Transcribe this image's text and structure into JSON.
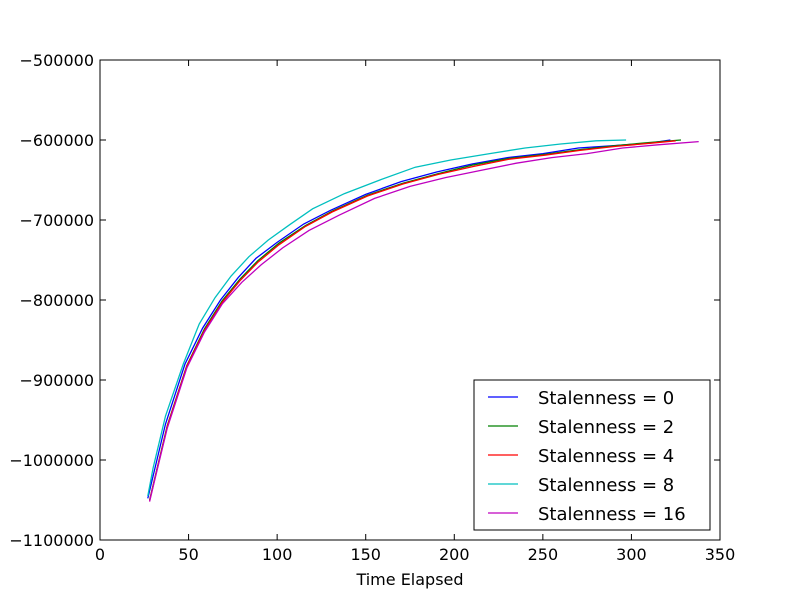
{
  "chart_data": {
    "type": "line",
    "title": "",
    "xlabel": "Time Elapsed",
    "ylabel": "",
    "xlim": [
      0,
      350
    ],
    "ylim": [
      -1100000,
      -500000
    ],
    "xticks": [
      0,
      50,
      100,
      150,
      200,
      250,
      300,
      350
    ],
    "yticks": [
      -1100000,
      -1000000,
      -900000,
      -800000,
      -700000,
      -600000,
      -500000
    ],
    "xtick_labels": [
      "0",
      "50",
      "100",
      "150",
      "200",
      "250",
      "300",
      "350"
    ],
    "ytick_labels": [
      "−1100000",
      "−1000000",
      "−900000",
      "−800000",
      "−700000",
      "−600000",
      "−500000"
    ],
    "grid": false,
    "legend_position": "lower-right",
    "series": [
      {
        "name": "Stalenness = 0",
        "color": "#0000ff",
        "x": [
          27,
          30,
          37,
          48,
          58,
          68,
          78,
          88,
          100,
          115,
          130,
          150,
          170,
          190,
          210,
          230,
          250,
          270,
          290,
          310,
          322
        ],
        "y": [
          -1048000,
          -1020000,
          -955000,
          -880000,
          -835000,
          -800000,
          -772000,
          -748000,
          -728000,
          -705000,
          -688000,
          -668000,
          -652000,
          -640000,
          -630000,
          -622000,
          -617000,
          -610000,
          -607000,
          -604000,
          -600000
        ]
      },
      {
        "name": "Stalenness = 2",
        "color": "#008000",
        "x": [
          28,
          31,
          38,
          49,
          59,
          69,
          79,
          89,
          101,
          116,
          131,
          151,
          171,
          191,
          211,
          231,
          251,
          271,
          291,
          311,
          328
        ],
        "y": [
          -1050000,
          -1022000,
          -957000,
          -882000,
          -836000,
          -801000,
          -774000,
          -751000,
          -729000,
          -707000,
          -689000,
          -669000,
          -654000,
          -642000,
          -631000,
          -623000,
          -618000,
          -612000,
          -607000,
          -603000,
          -600000
        ]
      },
      {
        "name": "Stalenness = 4",
        "color": "#ff0000",
        "x": [
          28,
          31,
          38,
          49,
          59,
          69,
          79,
          89,
          101,
          116,
          131,
          151,
          171,
          191,
          211,
          231,
          251,
          271,
          291,
          311,
          325
        ],
        "y": [
          -1051000,
          -1023000,
          -958000,
          -883000,
          -838000,
          -803000,
          -776000,
          -753000,
          -731000,
          -708000,
          -690000,
          -670000,
          -655000,
          -643000,
          -633000,
          -624000,
          -619000,
          -613000,
          -608000,
          -604000,
          -601000
        ]
      },
      {
        "name": "Stalenness = 8",
        "color": "#00bfbf",
        "x": [
          27,
          30,
          37,
          47,
          56,
          65,
          74,
          84,
          95,
          107,
          120,
          138,
          158,
          178,
          198,
          220,
          240,
          260,
          280,
          297
        ],
        "y": [
          -1045000,
          -1010000,
          -945000,
          -880000,
          -830000,
          -797000,
          -770000,
          -746000,
          -725000,
          -706000,
          -686000,
          -667000,
          -650000,
          -634000,
          -625000,
          -617000,
          -610000,
          -605000,
          -601000,
          -600000
        ]
      },
      {
        "name": "Stalenness = 16",
        "color": "#bf00bf",
        "x": [
          28,
          31,
          38,
          49,
          59,
          69,
          80,
          91,
          103,
          118,
          135,
          155,
          175,
          195,
          215,
          235,
          255,
          275,
          295,
          315,
          338
        ],
        "y": [
          -1052000,
          -1024000,
          -960000,
          -885000,
          -840000,
          -805000,
          -778000,
          -756000,
          -735000,
          -713000,
          -694000,
          -673000,
          -658000,
          -647000,
          -638000,
          -629000,
          -622000,
          -617000,
          -610000,
          -606000,
          -602000
        ]
      }
    ]
  }
}
